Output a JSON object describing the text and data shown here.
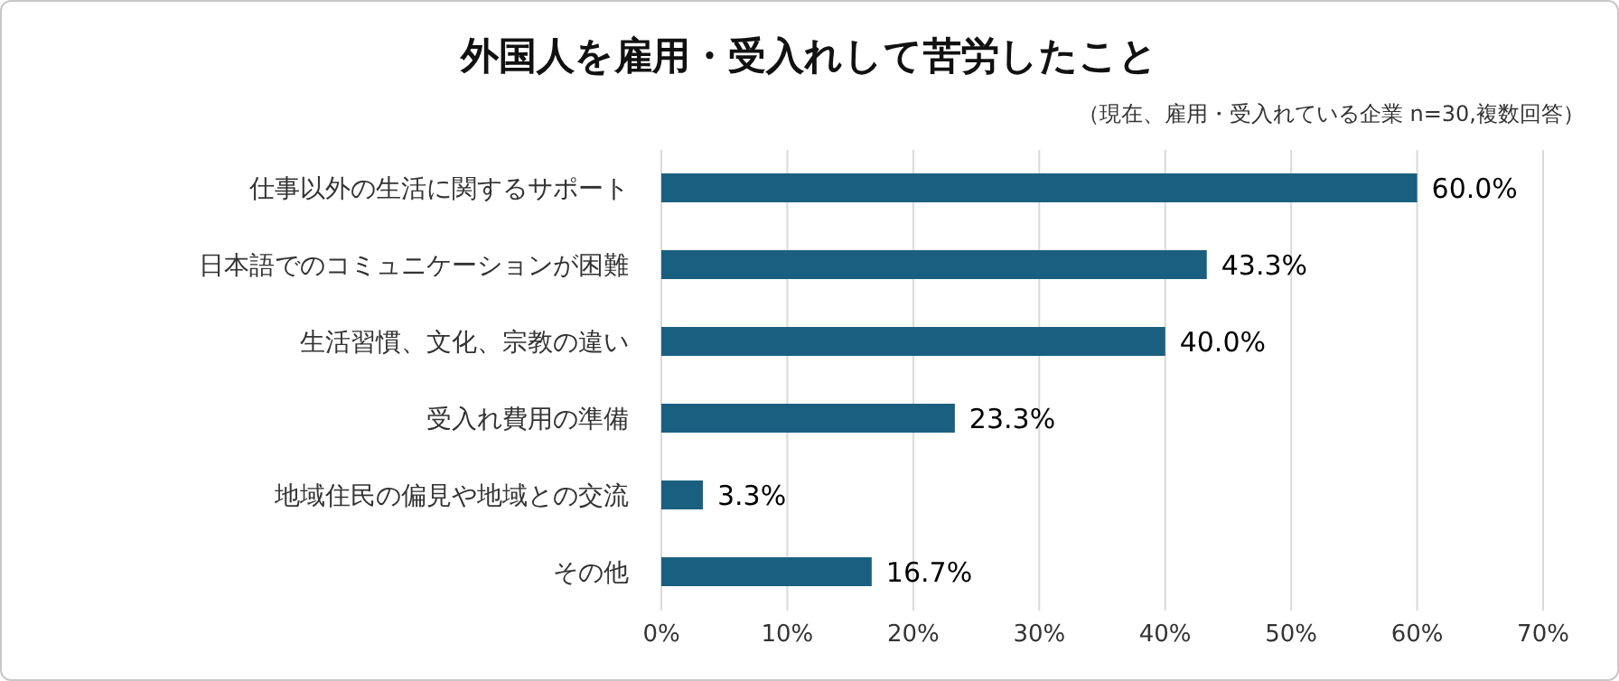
{
  "chart_data": {
    "type": "bar",
    "orientation": "horizontal",
    "title": "外国人を雇用・受入れして苦労したこと",
    "subtitle": "（現在、雇用・受入れている企業 n=30,複数回答）",
    "categories": [
      "仕事以外の生活に関するサポート",
      "日本語でのコミュニケーションが困難",
      "生活習慣、文化、宗教の違い",
      "受入れ費用の準備",
      "地域住民の偏見や地域との交流",
      "その他"
    ],
    "values": [
      60.0,
      43.3,
      40.0,
      23.3,
      3.3,
      16.7
    ],
    "value_labels": [
      "60.0%",
      "43.3%",
      "40.0%",
      "23.3%",
      "3.3%",
      "16.7%"
    ],
    "color": "#1b5f80",
    "xlim": [
      0,
      70
    ],
    "xticks": [
      {
        "value": 0,
        "label": "0%"
      },
      {
        "value": 10,
        "label": "10%"
      },
      {
        "value": 20,
        "label": "20%"
      },
      {
        "value": 30,
        "label": "30%"
      },
      {
        "value": 40,
        "label": "40%"
      },
      {
        "value": 50,
        "label": "50%"
      },
      {
        "value": 60,
        "label": "60%"
      },
      {
        "value": 70,
        "label": "70%"
      }
    ],
    "grid": "x",
    "legend": false
  }
}
